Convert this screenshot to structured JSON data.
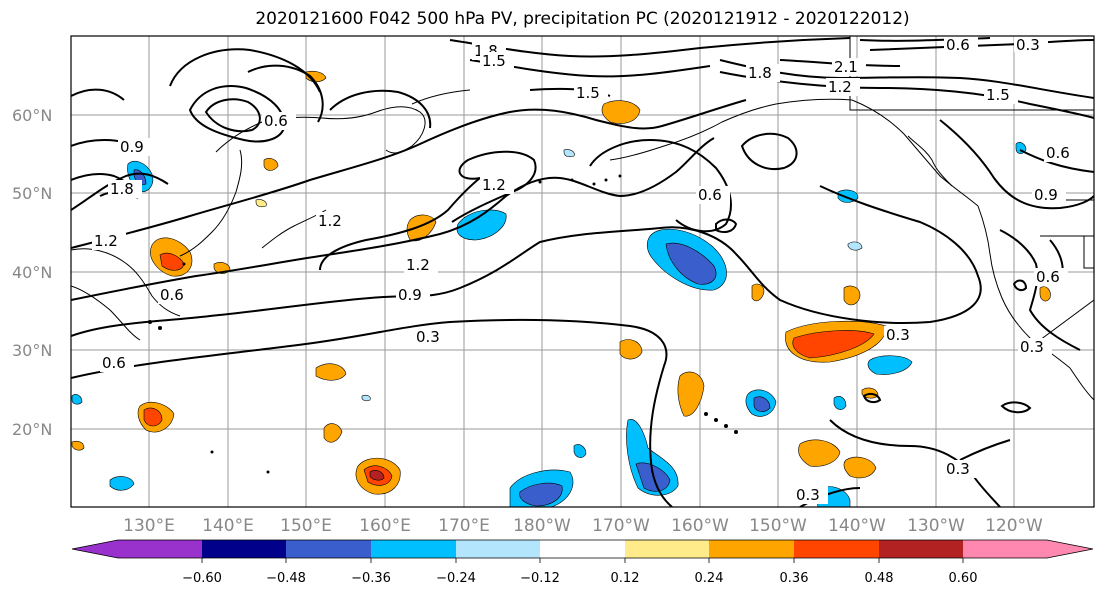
{
  "title": "2020121600 F042 500 hPa PV, precipitation PC (2020121912 - 2020122012)",
  "map": {
    "latitude_labels": [
      "60°N",
      "50°N",
      "40°N",
      "30°N",
      "20°N"
    ],
    "longitude_labels": [
      "130°E",
      "140°E",
      "150°E",
      "160°E",
      "170°E",
      "180°W",
      "170°W",
      "160°W",
      "150°W",
      "140°W",
      "130°W",
      "120°W"
    ],
    "contour_labels": [
      "1.8",
      "1.5",
      "1.2",
      "0.9",
      "1.2",
      "0.6",
      "1.2",
      "0.6",
      "0.9",
      "0.3",
      "0.6",
      "0.3",
      "0.3",
      "0.3",
      "1.8",
      "2.1",
      "1.2",
      "1.5",
      "0.6",
      "0.3",
      "0.9",
      "0.6",
      "1.8",
      "0.6",
      "1.5",
      "1.2",
      "0.3",
      "0.6"
    ],
    "fill_colors": {
      "orange": "#ffa500",
      "red": "#ff4500",
      "dark_red": "#b22222",
      "light_yellow": "#ffeb8a",
      "sky_blue": "#00bfff",
      "royal_blue": "#3a5fcd",
      "pale_blue": "#b3e5fc"
    }
  },
  "colorbar": {
    "ticks": [
      "−0.60",
      "−0.48",
      "−0.36",
      "−0.24",
      "−0.12",
      "0.12",
      "0.24",
      "0.36",
      "0.48",
      "0.60"
    ],
    "colors": [
      "#9932cc",
      "#00008b",
      "#3a5fcd",
      "#00bfff",
      "#b3e5fc",
      "#ffffff",
      "#ffeb8a",
      "#ffa500",
      "#ff4500",
      "#b22222",
      "#ff88b0"
    ]
  }
}
